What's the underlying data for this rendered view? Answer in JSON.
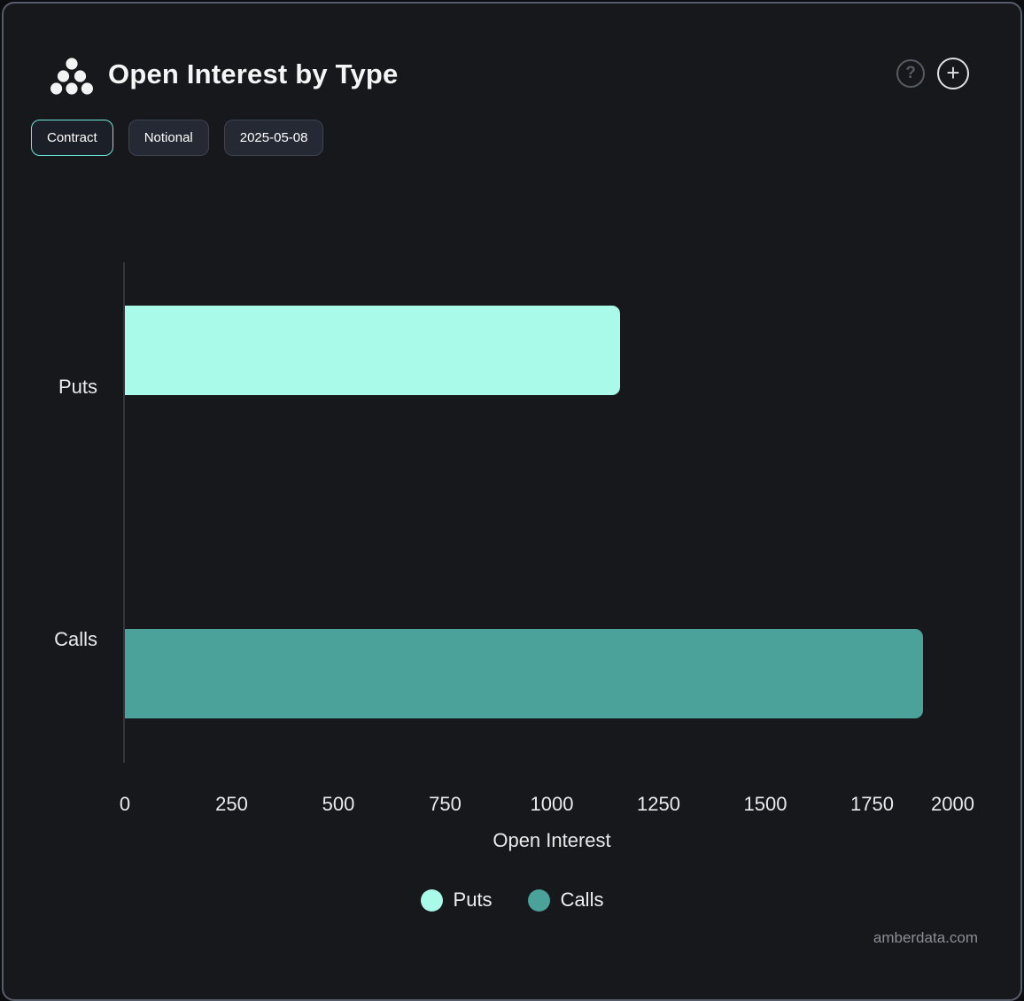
{
  "header": {
    "title": "Open Interest by Type",
    "help_glyph": "?",
    "add_glyph": "+"
  },
  "toolbar": {
    "chips": [
      {
        "label": "Contract",
        "active": true
      },
      {
        "label": "Notional",
        "active": false
      },
      {
        "label": "2025-05-08",
        "active": false
      }
    ]
  },
  "chart_data": {
    "type": "bar",
    "orientation": "horizontal",
    "title": "Open Interest by Type",
    "categories": [
      "Puts",
      "Calls"
    ],
    "values": [
      1160,
      1870
    ],
    "colors": [
      "#A9FAE9",
      "#4AA29A"
    ],
    "xlabel": "Open Interest",
    "xlim": [
      0,
      2000
    ],
    "xticks": [
      0,
      250,
      500,
      750,
      1000,
      1250,
      1500,
      1750,
      2000
    ],
    "grid": false,
    "legend": {
      "position": "bottom",
      "entries": [
        "Puts",
        "Calls"
      ]
    }
  },
  "footer": {
    "watermark": "amberdata.com"
  },
  "colors": {
    "card_bg": "#16181b",
    "card_border": "#565c6a",
    "accent_teal": "#6FE6D6",
    "puts": "#A9FAE9",
    "calls": "#4AA29A",
    "text": "#E9EBEB",
    "muted": "#8A8E96"
  }
}
